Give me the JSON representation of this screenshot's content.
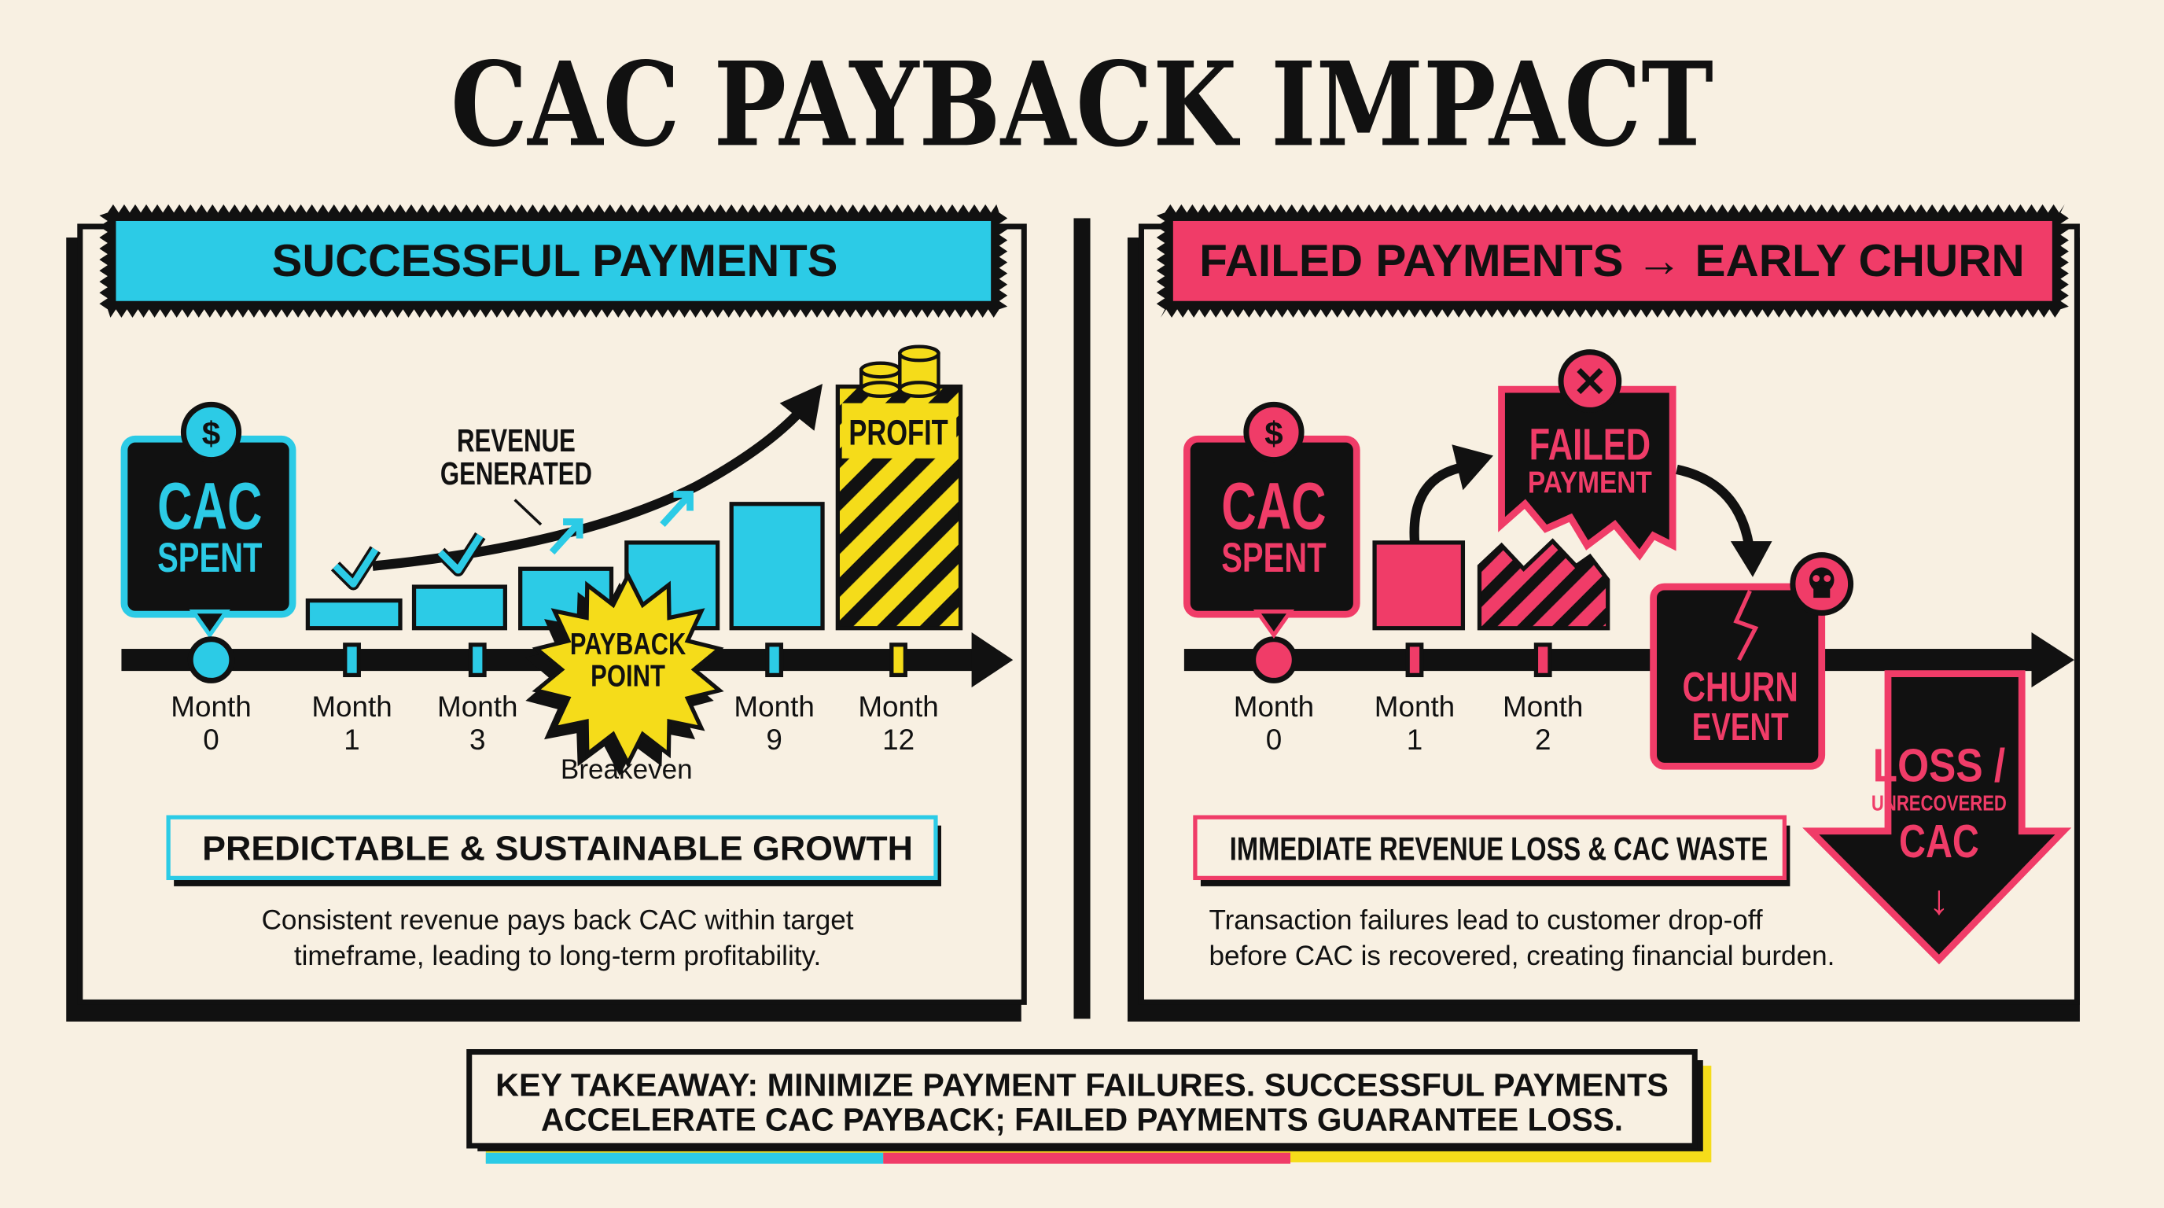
{
  "title": "CAC PAYBACK IMPACT",
  "colors": {
    "background": "#f8f0e2",
    "cyan": "#2ccbe6",
    "pink": "#f03c68",
    "yellow": "#f5dc1a",
    "black": "#111111"
  },
  "left": {
    "banner": "SUCCESSFUL PAYMENTS",
    "cac_box": {
      "icon": "dollar-icon",
      "line1": "CAC",
      "line2": "SPENT"
    },
    "annotation": [
      "REVENUE",
      "GENERATED"
    ],
    "profit_label": "PROFIT",
    "payback": [
      "PAYBACK",
      "POINT"
    ],
    "breakeven": "Breakeven",
    "months": [
      {
        "word": "Month",
        "num": "0"
      },
      {
        "word": "Month",
        "num": "1"
      },
      {
        "word": "Month",
        "num": "3"
      },
      {
        "word": "Month",
        "num": "9"
      },
      {
        "word": "Month",
        "num": "12"
      }
    ],
    "subheading": "PREDICTABLE & SUSTAINABLE GROWTH",
    "description": [
      "Consistent revenue pays back CAC within target",
      "timeframe, leading to long-term profitability."
    ]
  },
  "right": {
    "banner": "FAILED PAYMENTS → EARLY CHURN",
    "cac_box": {
      "icon": "dollar-icon",
      "line1": "CAC",
      "line2": "SPENT"
    },
    "failed": {
      "icon": "x-circle-icon",
      "line1": "FAILED",
      "line2": "PAYMENT"
    },
    "churn": {
      "icon": "skull-icon",
      "line1": "CHURN",
      "line2": "EVENT"
    },
    "loss": {
      "line1": "LOSS /",
      "line2": "UNRECOVERED",
      "line3": "CAC",
      "arrow": "↓"
    },
    "months": [
      {
        "word": "Month",
        "num": "0"
      },
      {
        "word": "Month",
        "num": "1"
      },
      {
        "word": "Month",
        "num": "2"
      }
    ],
    "subheading": "IMMEDIATE REVENUE LOSS & CAC WASTE",
    "description": [
      "Transaction failures lead to customer drop-off",
      "before CAC is recovered, creating financial burden."
    ]
  },
  "takeaway": [
    "KEY TAKEAWAY: MINIMIZE PAYMENT FAILURES. SUCCESSFUL PAYMENTS",
    "ACCELERATE CAC PAYBACK; FAILED PAYMENTS GUARANTEE LOSS."
  ]
}
